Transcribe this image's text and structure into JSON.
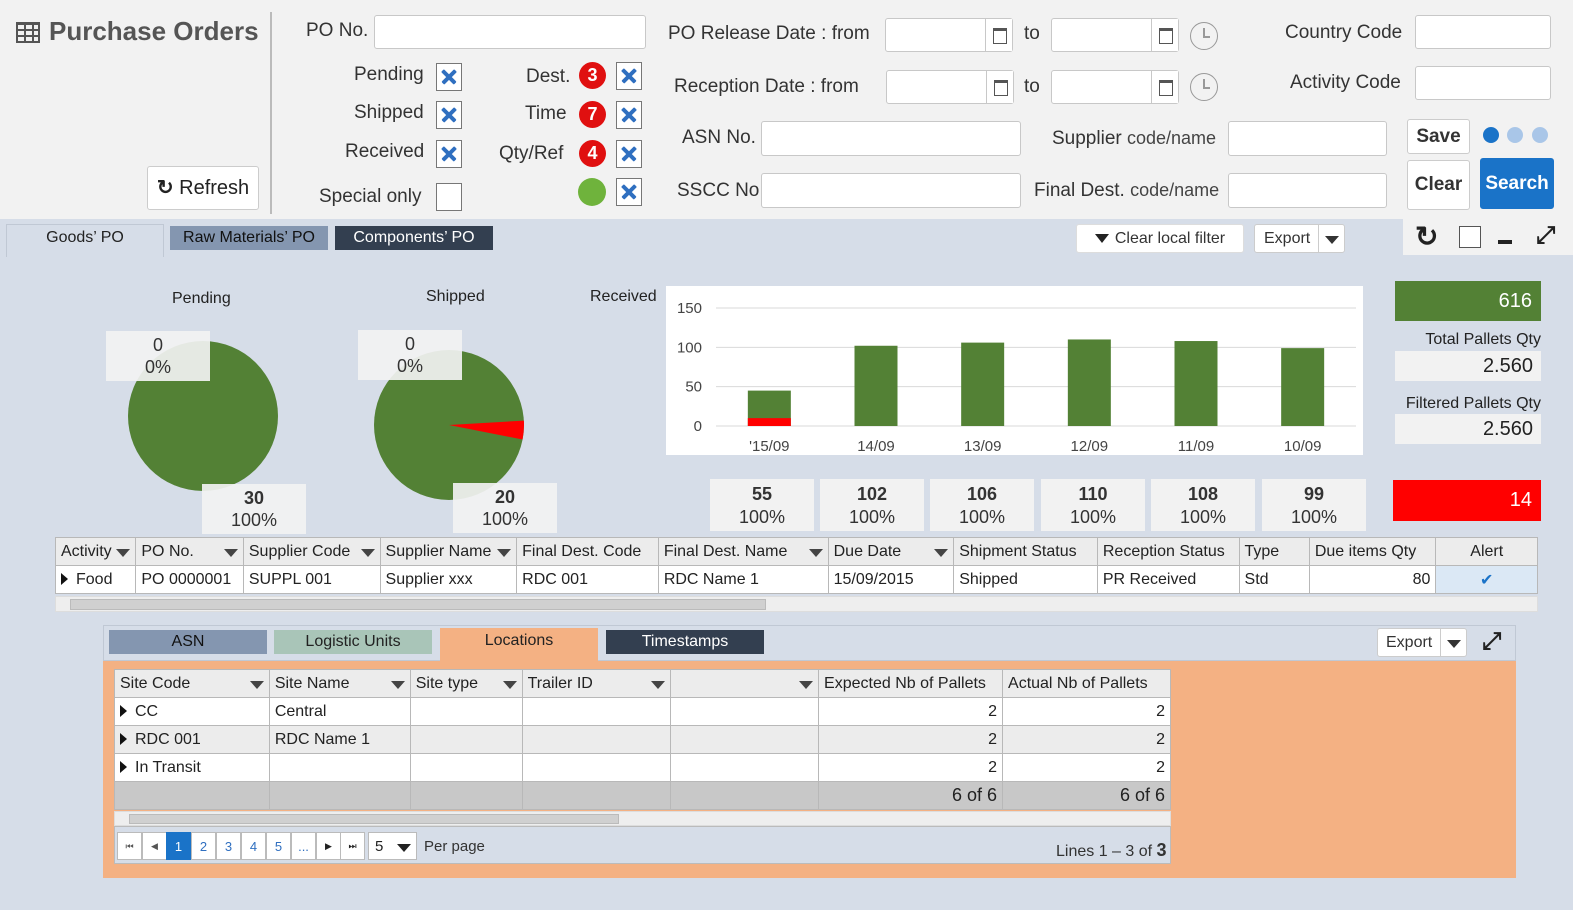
{
  "app": {
    "title": "Purchase Orders",
    "refresh": "Refresh"
  },
  "filters": {
    "po_no": "PO No.",
    "pending": "Pending",
    "shipped": "Shipped",
    "received": "Received",
    "special_only": "Special only",
    "dest": "Dest.",
    "dest_count": "3",
    "time": "Time",
    "time_count": "7",
    "qty_ref": "Qty/Ref",
    "qty_ref_count": "4",
    "release_date": "PO Release Date :  from",
    "reception_date": "Reception Date :  from",
    "to": "to",
    "asn_no": "ASN No.",
    "sscc_no": "SSCC No.",
    "supplier": "Supplier",
    "supplier_small": "code/name",
    "final_dest": "Final Dest.",
    "final_dest_small": "code/name",
    "country_code": "Country Code",
    "activity_code": "Activity Code"
  },
  "buttons": {
    "save": "Save",
    "clear": "Clear",
    "search": "Search"
  },
  "tabs": [
    "Goods’ PO",
    "Raw Materials’ PO",
    "Components’ PO"
  ],
  "toolbar": {
    "clear_filter": "Clear local filter",
    "export": "Export"
  },
  "pies": {
    "pending": {
      "title": "Pending",
      "top_value": "0",
      "top_pct": "0%",
      "bottom_value": "30",
      "bottom_pct": "100%"
    },
    "shipped": {
      "title": "Shipped",
      "top_value": "0",
      "top_pct": "0%",
      "bottom_value": "20",
      "bottom_pct": "100%"
    }
  },
  "received_label": "Received",
  "chart_data": {
    "type": "bar",
    "categories": [
      "'15/09",
      "14/09",
      "13/09",
      "12/09",
      "11/09",
      "10/09"
    ],
    "series": [
      {
        "values": [
          45,
          102,
          106,
          110,
          108,
          99
        ],
        "color": "#538135"
      },
      {
        "values": [
          10,
          0,
          0,
          0,
          0,
          0
        ],
        "color": "#ff0000"
      }
    ],
    "ylim": [
      0,
      150
    ],
    "yticks": [
      0,
      50,
      100,
      150
    ],
    "stacked": true
  },
  "day_stats": [
    {
      "value": "55",
      "pct": "100%"
    },
    {
      "value": "102",
      "pct": "100%"
    },
    {
      "value": "106",
      "pct": "100%"
    },
    {
      "value": "110",
      "pct": "100%"
    },
    {
      "value": "108",
      "pct": "100%"
    },
    {
      "value": "99",
      "pct": "100%"
    }
  ],
  "kpis": {
    "total": "616",
    "total_pallets_label": "Total Pallets Qty",
    "total_pallets": "2.560",
    "filtered_pallets_label": "Filtered Pallets Qty",
    "filtered_pallets": "2.560",
    "alert": "14"
  },
  "po_table": {
    "headers": [
      "Activity",
      "PO No.",
      "Supplier Code",
      "Supplier Name",
      "Final Dest. Code",
      "Final Dest. Name",
      "Due Date",
      "Shipment Status",
      "Reception Status",
      "Type",
      "Due items Qty",
      "Alert"
    ],
    "row": [
      "Food",
      "PO 0000001",
      "SUPPL 001",
      "Supplier xxx",
      "RDC 001",
      "RDC Name 1",
      "15/09/2015",
      "Shipped",
      "PR Received",
      "Std",
      "80"
    ]
  },
  "sub_tabs": [
    "ASN",
    "Logistic Units",
    "Locations",
    "Timestamps"
  ],
  "sub_export": "Export",
  "loc_table": {
    "headers": [
      "Site Code",
      "Site Name",
      "Site type",
      "Trailer ID",
      "",
      "Expected Nb of Pallets",
      "Actual Nb of Pallets"
    ],
    "rows": [
      {
        "code": "CC",
        "name": "Central",
        "expected": "2",
        "actual": "2"
      },
      {
        "code": "RDC 001",
        "name": "RDC Name 1",
        "expected": "2",
        "actual": "2"
      },
      {
        "code": "In Transit",
        "name": "",
        "expected": "2",
        "actual": "2"
      }
    ],
    "total_expected": "6 of 6",
    "total_actual": "6 of 6"
  },
  "pager": {
    "pages": [
      "1",
      "2",
      "3",
      "4",
      "5",
      "..."
    ],
    "per_page": "5",
    "per_page_label": "Per page",
    "lines": "Lines 1 – 3 of ",
    "lines_total": "3"
  },
  "colors": {
    "green": "#538135",
    "red": "#ff0000",
    "blue": "#1a73c8",
    "tab_orange": "#f4b183"
  }
}
